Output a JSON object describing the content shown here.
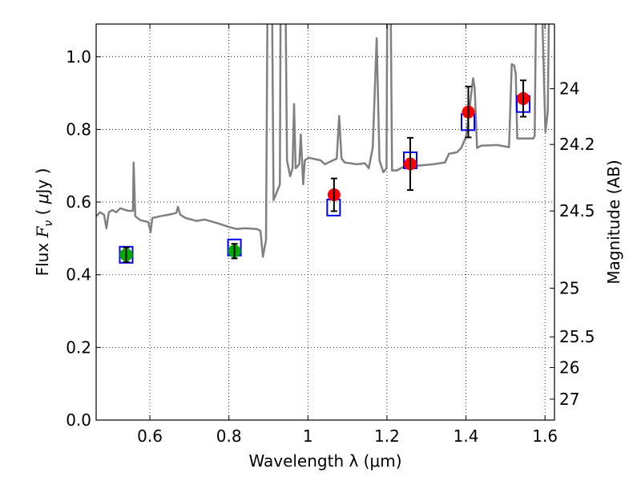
{
  "chart_data": {
    "type": "scatter",
    "xlabel": "Wavelength  λ (μm)",
    "ylabel": "Flux  F_ν  ( μJy )",
    "ylabel_parts": {
      "pre": "Flux  ",
      "var": "F",
      "sub": "ν",
      "post": "  ( ",
      "mu": "μ",
      "unit": "Jy )"
    },
    "y2label": "Magnitude (AB)",
    "xlim": [
      0.464,
      1.624
    ],
    "ylim": [
      0.0,
      1.09
    ],
    "grid": true,
    "xticks": [
      {
        "v": 0.6,
        "label": "0.6"
      },
      {
        "v": 0.8,
        "label": "0.8"
      },
      {
        "v": 1.0,
        "label": "1"
      },
      {
        "v": 1.2,
        "label": "1.2"
      },
      {
        "v": 1.4,
        "label": "1.4"
      },
      {
        "v": 1.6,
        "label": "1.6"
      }
    ],
    "yticks": [
      {
        "v": 0.0,
        "label": "0.0"
      },
      {
        "v": 0.2,
        "label": "0.2"
      },
      {
        "v": 0.4,
        "label": "0.4"
      },
      {
        "v": 0.6,
        "label": "0.6"
      },
      {
        "v": 0.8,
        "label": "0.8"
      },
      {
        "v": 1.0,
        "label": "1.0"
      }
    ],
    "y2ticks": [
      {
        "mag": 24,
        "label": "24"
      },
      {
        "mag": 24.2,
        "label": "24.2"
      },
      {
        "mag": 24.5,
        "label": "24.5"
      },
      {
        "mag": 25,
        "label": "25"
      },
      {
        "mag": 25.5,
        "label": "25.5"
      },
      {
        "mag": 26,
        "label": "26"
      },
      {
        "mag": 27,
        "label": "27"
      }
    ],
    "magnitude_zeropoint": 23.9,
    "colors": {
      "spectrum": "#808080",
      "green": "#00aa00",
      "red": "#ff0000",
      "model": "#0000ff",
      "errorbar": "#000000"
    },
    "spectrum": [
      [
        0.464,
        0.561
      ],
      [
        0.474,
        0.572
      ],
      [
        0.484,
        0.565
      ],
      [
        0.49,
        0.528
      ],
      [
        0.496,
        0.572
      ],
      [
        0.505,
        0.578
      ],
      [
        0.515,
        0.572
      ],
      [
        0.525,
        0.583
      ],
      [
        0.545,
        0.576
      ],
      [
        0.557,
        0.576
      ],
      [
        0.559,
        0.709
      ],
      [
        0.563,
        0.561
      ],
      [
        0.576,
        0.55
      ],
      [
        0.596,
        0.545
      ],
      [
        0.602,
        0.517
      ],
      [
        0.606,
        0.556
      ],
      [
        0.626,
        0.561
      ],
      [
        0.647,
        0.565
      ],
      [
        0.667,
        0.57
      ],
      [
        0.671,
        0.587
      ],
      [
        0.677,
        0.565
      ],
      [
        0.691,
        0.556
      ],
      [
        0.718,
        0.548
      ],
      [
        0.738,
        0.552
      ],
      [
        0.768,
        0.543
      ],
      [
        0.799,
        0.532
      ],
      [
        0.819,
        0.526
      ],
      [
        0.84,
        0.528
      ],
      [
        0.87,
        0.526
      ],
      [
        0.88,
        0.521
      ],
      [
        0.886,
        0.45
      ],
      [
        0.894,
        0.495
      ],
      [
        0.898,
        1.2
      ],
      [
        0.909,
        1.2
      ],
      [
        0.913,
        0.605
      ],
      [
        0.923,
        0.632
      ],
      [
        0.929,
        0.649
      ],
      [
        0.931,
        1.2
      ],
      [
        0.943,
        1.2
      ],
      [
        0.947,
        0.715
      ],
      [
        0.955,
        0.671
      ],
      [
        0.961,
        0.693
      ],
      [
        0.965,
        0.87
      ],
      [
        0.969,
        0.693
      ],
      [
        0.978,
        0.704
      ],
      [
        0.982,
        0.786
      ],
      [
        0.988,
        0.649
      ],
      [
        0.992,
        0.715
      ],
      [
        1.002,
        0.722
      ],
      [
        1.032,
        0.715
      ],
      [
        1.043,
        0.704
      ],
      [
        1.073,
        0.72
      ],
      [
        1.079,
        0.837
      ],
      [
        1.085,
        0.72
      ],
      [
        1.093,
        0.709
      ],
      [
        1.124,
        0.704
      ],
      [
        1.144,
        0.707
      ],
      [
        1.154,
        0.693
      ],
      [
        1.164,
        0.749
      ],
      [
        1.174,
        1.051
      ],
      [
        1.181,
        0.715
      ],
      [
        1.191,
        0.682
      ],
      [
        1.199,
        0.693
      ],
      [
        1.201,
        1.2
      ],
      [
        1.209,
        1.2
      ],
      [
        1.213,
        0.687
      ],
      [
        1.225,
        0.687
      ],
      [
        1.235,
        0.693
      ],
      [
        1.256,
        0.704
      ],
      [
        1.276,
        0.7
      ],
      [
        1.317,
        0.704
      ],
      [
        1.347,
        0.709
      ],
      [
        1.357,
        0.733
      ],
      [
        1.377,
        0.737
      ],
      [
        1.388,
        0.749
      ],
      [
        1.4,
        0.779
      ],
      [
        1.408,
        0.848
      ],
      [
        1.418,
        0.941
      ],
      [
        1.422,
        0.914
      ],
      [
        1.428,
        0.749
      ],
      [
        1.438,
        0.755
      ],
      [
        1.479,
        0.757
      ],
      [
        1.509,
        0.751
      ],
      [
        1.516,
        0.98
      ],
      [
        1.522,
        0.976
      ],
      [
        1.526,
        0.952
      ],
      [
        1.53,
        0.775
      ],
      [
        1.57,
        0.775
      ],
      [
        1.574,
        0.782
      ],
      [
        1.578,
        1.2
      ],
      [
        1.591,
        1.2
      ],
      [
        1.601,
        0.793
      ],
      [
        1.607,
        0.848
      ],
      [
        1.611,
        1.2
      ],
      [
        1.625,
        1.2
      ]
    ],
    "model_photometry": [
      {
        "x": 0.54,
        "y": 0.455
      },
      {
        "x": 0.814,
        "y": 0.475
      },
      {
        "x": 1.065,
        "y": 0.585
      },
      {
        "x": 1.259,
        "y": 0.715
      },
      {
        "x": 1.405,
        "y": 0.82
      },
      {
        "x": 1.545,
        "y": 0.87
      }
    ],
    "observed": [
      {
        "x": 0.54,
        "y": 0.455,
        "err": 0.02,
        "color": "green"
      },
      {
        "x": 0.814,
        "y": 0.465,
        "err": 0.02,
        "color": "green"
      },
      {
        "x": 1.066,
        "y": 0.62,
        "err": 0.045,
        "color": "red"
      },
      {
        "x": 1.259,
        "y": 0.705,
        "err": 0.072,
        "color": "red"
      },
      {
        "x": 1.406,
        "y": 0.848,
        "err": 0.07,
        "color": "red"
      },
      {
        "x": 1.545,
        "y": 0.885,
        "err": 0.05,
        "color": "red"
      }
    ]
  }
}
